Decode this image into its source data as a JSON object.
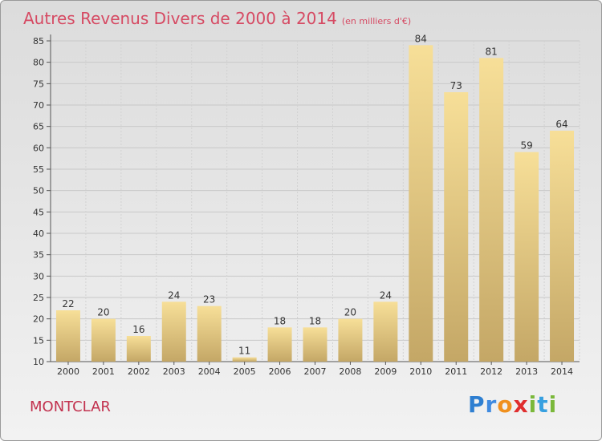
{
  "title": "Autres Revenus Divers de 2000 à 2014",
  "subtitle": "(en milliers d'€)",
  "city": "MONTCLAR",
  "logo": {
    "letters": [
      "P",
      "r",
      "o",
      "x",
      "i",
      "t",
      "i"
    ],
    "colors": [
      "#2e7fd1",
      "#3f8ae0",
      "#f0901e",
      "#e02e2e",
      "#7ab83a",
      "#37a0e0",
      "#7ab83a"
    ]
  },
  "colors": {
    "bar_top": "#f7df98",
    "bar_bottom": "#c4a766",
    "title": "#d64a63"
  },
  "chart_data": {
    "type": "bar",
    "title": "Autres Revenus Divers de 2000 à 2014",
    "categories": [
      "2000",
      "2001",
      "2002",
      "2003",
      "2004",
      "2005",
      "2006",
      "2007",
      "2008",
      "2009",
      "2010",
      "2011",
      "2012",
      "2013",
      "2014"
    ],
    "values": [
      22,
      20,
      16,
      24,
      23,
      11,
      18,
      18,
      20,
      24,
      84,
      73,
      81,
      59,
      64
    ],
    "ylim": [
      10,
      85
    ],
    "yticks": [
      10,
      15,
      20,
      25,
      30,
      35,
      40,
      45,
      50,
      55,
      60,
      65,
      70,
      75,
      80,
      85
    ],
    "grid": true
  }
}
